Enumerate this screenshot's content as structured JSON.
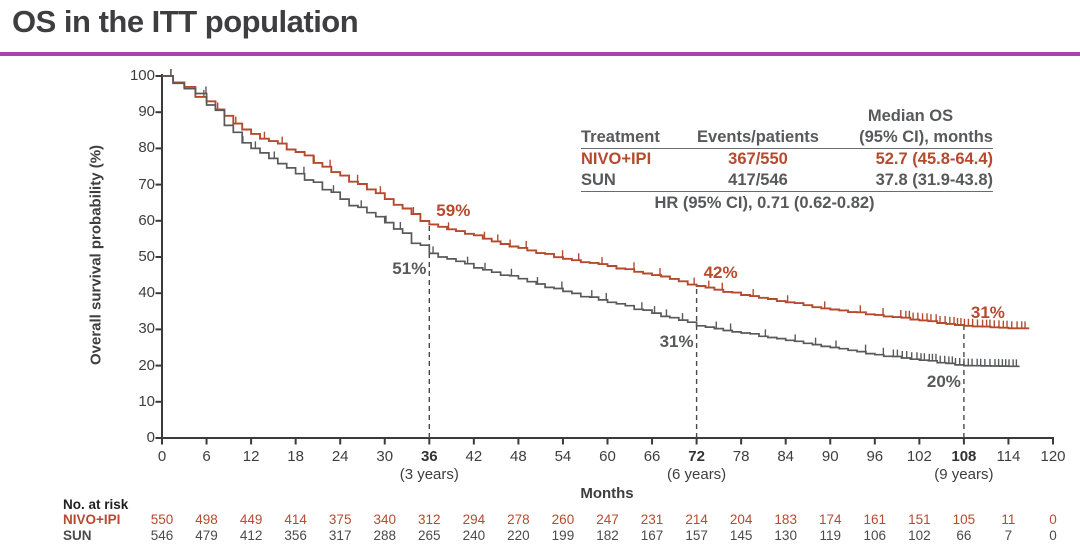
{
  "slide": {
    "title": "OS in the ITT population",
    "accent_color": "#a844ab"
  },
  "summary_table": {
    "header": {
      "col1": "Treatment",
      "col2": "Events/patients",
      "col3_line1": "Median OS",
      "col3_line2": "(95% CI), months"
    },
    "rows": [
      {
        "treatment": "NIVO+IPI",
        "events": "367/550",
        "median": "52.7 (45.8-64.4)",
        "color": "#b64a2e"
      },
      {
        "treatment": "SUN",
        "events": "417/546",
        "median": "37.8 (31.9-43.8)",
        "color": "#58595b"
      }
    ],
    "footer": "HR (95% CI), 0.71 (0.62-0.82)"
  },
  "chart_data": {
    "type": "line",
    "subtype": "kaplan-meier-step",
    "xlabel": "Months",
    "ylabel": "Overall survival probability (%)",
    "xlim": [
      0,
      120
    ],
    "ylim": [
      0,
      100
    ],
    "x_ticks": [
      0,
      6,
      12,
      18,
      24,
      30,
      36,
      42,
      48,
      54,
      60,
      66,
      72,
      78,
      84,
      90,
      96,
      102,
      108,
      114,
      120
    ],
    "x_ticks_bold": [
      36,
      72,
      108
    ],
    "x_year_labels": [
      {
        "month": 36,
        "label": "(3 years)"
      },
      {
        "month": 72,
        "label": "(6 years)"
      },
      {
        "month": 108,
        "label": "(9 years)"
      }
    ],
    "y_ticks": [
      0,
      10,
      20,
      30,
      40,
      50,
      60,
      70,
      80,
      90,
      100
    ],
    "grid": false,
    "axis_color": "#3a3a3c",
    "series": [
      {
        "name": "NIVO+IPI",
        "color": "#b64a2e",
        "x": [
          0,
          3,
          6,
          12,
          18,
          24,
          30,
          36,
          42,
          48,
          54,
          60,
          66,
          72,
          78,
          84,
          90,
          96,
          102,
          108,
          114,
          116.8
        ],
        "values": [
          100,
          97,
          93,
          84,
          79,
          72.5,
          66,
          59,
          56,
          52.5,
          49.5,
          47.5,
          45,
          42,
          39.5,
          37.5,
          35.5,
          34,
          32.5,
          31,
          30.3,
          30.3
        ],
        "censor_dense_start": 99.5
      },
      {
        "name": "SUN",
        "color": "#58595b",
        "x": [
          0,
          3,
          6,
          12,
          18,
          24,
          30,
          36,
          42,
          48,
          54,
          60,
          66,
          72,
          78,
          84,
          90,
          96,
          102,
          108,
          114,
          115.5
        ],
        "values": [
          100,
          96.5,
          92,
          80,
          73,
          66,
          59.5,
          51,
          47,
          44,
          40.5,
          37.5,
          34.5,
          31,
          29,
          27,
          25,
          23,
          21.5,
          20,
          19.8,
          19.8
        ],
        "censor_dense_start": 98.5
      }
    ],
    "dashed_milestones": [
      {
        "month": 36,
        "top_pct": 59
      },
      {
        "month": 72,
        "top_pct": 42
      },
      {
        "month": 108,
        "top_pct": 31
      }
    ],
    "annotations": [
      {
        "text": "59%",
        "series": 0,
        "month": 36,
        "pct": 59,
        "placement": "above-right"
      },
      {
        "text": "51%",
        "series": 1,
        "month": 36,
        "pct": 51,
        "placement": "below-left"
      },
      {
        "text": "42%",
        "series": 0,
        "month": 72,
        "pct": 42,
        "placement": "above-right"
      },
      {
        "text": "31%",
        "series": 1,
        "month": 72,
        "pct": 31,
        "placement": "below-left"
      },
      {
        "text": "31%",
        "series": 0,
        "month": 108,
        "pct": 31,
        "placement": "above-right"
      },
      {
        "text": "20%",
        "series": 1,
        "month": 108,
        "pct": 20,
        "placement": "below-left"
      }
    ],
    "at_risk": {
      "label": "No. at risk",
      "months": [
        0,
        6,
        12,
        18,
        24,
        30,
        36,
        42,
        48,
        54,
        60,
        66,
        72,
        78,
        84,
        90,
        96,
        102,
        108,
        114,
        120
      ],
      "rows": [
        {
          "name": "NIVO+IPI",
          "color": "#b64a2e",
          "counts": [
            550,
            498,
            449,
            414,
            375,
            340,
            312,
            294,
            278,
            260,
            247,
            231,
            214,
            204,
            183,
            174,
            161,
            151,
            105,
            11,
            0
          ]
        },
        {
          "name": "SUN",
          "color": "#4a4b4d",
          "counts": [
            546,
            479,
            412,
            356,
            317,
            288,
            265,
            240,
            220,
            199,
            182,
            167,
            157,
            145,
            130,
            119,
            106,
            102,
            66,
            7,
            0
          ]
        }
      ]
    }
  }
}
